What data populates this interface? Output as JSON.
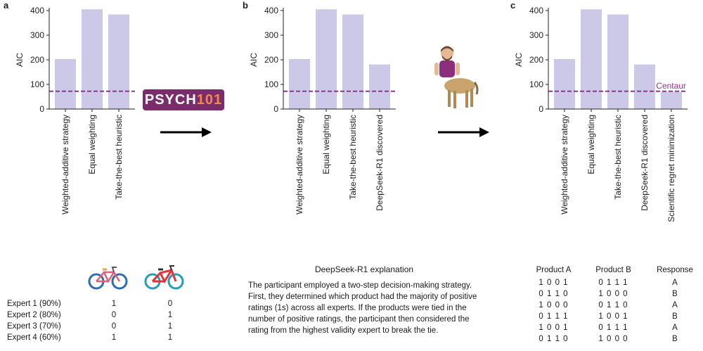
{
  "chart_data": [
    {
      "type": "bar",
      "panel": "a",
      "ylabel": "AIC",
      "yticks": [
        0,
        100,
        200,
        300,
        400
      ],
      "ylim": [
        0,
        400
      ],
      "categories": [
        "Weighted-additive strategy",
        "Equal weighting",
        "Take-the-best heuristic"
      ],
      "values": [
        203,
        405,
        384
      ],
      "reference_line": {
        "value": 72,
        "label": ""
      }
    },
    {
      "type": "bar",
      "panel": "b",
      "ylabel": "AIC",
      "yticks": [
        0,
        100,
        200,
        300,
        400
      ],
      "ylim": [
        0,
        400
      ],
      "categories": [
        "Weighted-additive strategy",
        "Equal weighting",
        "Take-the-best heuristic",
        "DeepSeek-R1 discovered"
      ],
      "values": [
        203,
        405,
        384,
        181
      ],
      "reference_line": {
        "value": 72,
        "label": ""
      }
    },
    {
      "type": "bar",
      "panel": "c",
      "ylabel": "AIC",
      "yticks": [
        0,
        100,
        200,
        300,
        400
      ],
      "ylim": [
        0,
        400
      ],
      "categories": [
        "Weighted-additive strategy",
        "Equal weighting",
        "Take-the-best heuristic",
        "DeepSeek-R1 discovered",
        "Scientific regret minimization"
      ],
      "values": [
        203,
        405,
        384,
        181,
        70
      ],
      "reference_line": {
        "value": 72,
        "label": "Centaur"
      }
    }
  ],
  "colors": {
    "bar": "#cbc8e8",
    "reference": "#8b3a86",
    "axis": "#222222"
  },
  "logo": {
    "text_1": "PSYCH",
    "text_2": "101"
  },
  "icons": [
    "bicycle-icon-blue",
    "bicycle-icon-red",
    "centaur-icon",
    "arrow-right-icon"
  ],
  "experts": [
    {
      "label": "Expert 1 (90%)",
      "a": "1",
      "b": "0"
    },
    {
      "label": "Expert 2 (80%)",
      "a": "0",
      "b": "1"
    },
    {
      "label": "Expert 3 (70%)",
      "a": "0",
      "b": "1"
    },
    {
      "label": "Expert 4 (60%)",
      "a": "1",
      "b": "1"
    }
  ],
  "explanation": {
    "title": "DeepSeek-R1 explanation",
    "body": "The participant employed a two-step decision-making strategy. First, they determined which product had the majority of positive ratings (1s) across all experts. If the products were tied in the number of positive ratings, the participant then considered the rating from the highest validity expert to break the tie."
  },
  "products": {
    "headers": [
      "Product A",
      "Product B",
      "Response"
    ],
    "rows": [
      [
        "1 0 0 1",
        "0 1 1 1",
        "A"
      ],
      [
        "0 1 1 0",
        "1 0 0 0",
        "B"
      ],
      [
        "1 0 0 0",
        "0 1 1 0",
        "A"
      ],
      [
        "0 1 1 1",
        "1 0 0 1",
        "B"
      ],
      [
        "1 0 0 1",
        "0 1 1 1",
        "A"
      ],
      [
        "0 1 1 0",
        "1 0 0 0",
        "B"
      ]
    ]
  }
}
